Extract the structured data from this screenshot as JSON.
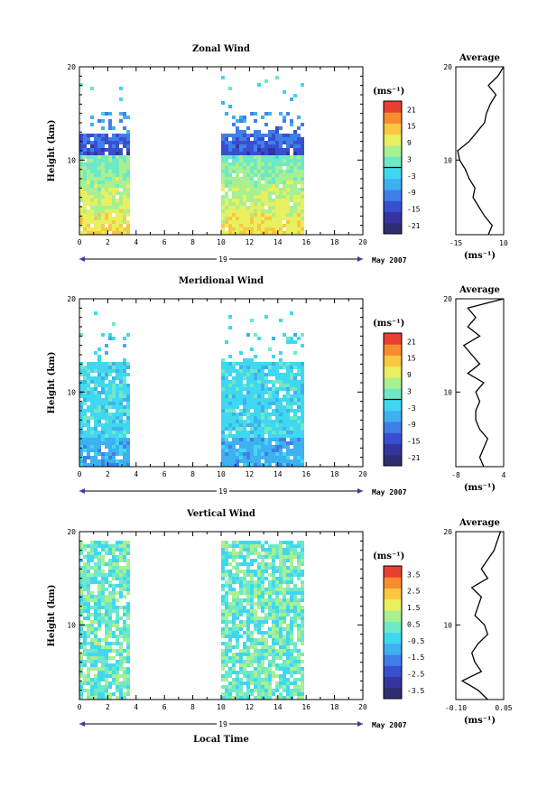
{
  "figure": {
    "date_label": "May 2007",
    "day_label": "19",
    "time_axis_label": "Local Time",
    "height_axis_label": "Height (km)",
    "unit_label": "(ms⁻¹)"
  },
  "chart_data": [
    {
      "type": "heatmap",
      "title": "Zonal Wind",
      "xlabel": "",
      "ylabel": "Height (km)",
      "xlim": [
        0,
        20
      ],
      "ylim": [
        2,
        20
      ],
      "x_ticks": [
        0,
        2,
        4,
        6,
        8,
        10,
        12,
        14,
        16,
        18,
        20
      ],
      "x_tick_labels": [
        "0",
        "2",
        "4",
        "6",
        "8",
        "10",
        "12",
        "14",
        "16",
        "18",
        "20"
      ],
      "y_ticks": [
        10,
        20
      ],
      "grid": false,
      "data_segments": [
        [
          0,
          3.5
        ],
        [
          10,
          15.7
        ]
      ],
      "colorbar": {
        "label": "(ms⁻¹)",
        "ticks": [
          "21",
          "15",
          "9",
          "3",
          "-3",
          "-9",
          "-15",
          "-21"
        ],
        "range": [
          -24,
          24
        ],
        "zero_line": 0
      },
      "profile_description": "strong westward (blue) above ~10 km, weak near-zero winds below 10 km",
      "average": {
        "title": "Average",
        "xlabel": "(ms⁻¹)",
        "xlim": [
          -15,
          10
        ],
        "x_ticks": [
          "-15",
          "10"
        ],
        "y_ticks": [
          10,
          20
        ],
        "heights": [
          2,
          3,
          4,
          5,
          6,
          7,
          8,
          9,
          10,
          11,
          12,
          13,
          14,
          15,
          16,
          17,
          18,
          19,
          20
        ],
        "values": [
          2,
          4,
          0,
          -3,
          -6,
          -5,
          -8,
          -10,
          -13,
          -14,
          -8,
          -4,
          0,
          1,
          3,
          6,
          2,
          7,
          10
        ]
      }
    },
    {
      "type": "heatmap",
      "title": "Meridional Wind",
      "xlabel": "",
      "ylabel": "Height (km)",
      "xlim": [
        0,
        20
      ],
      "ylim": [
        2,
        20
      ],
      "x_ticks": [
        0,
        2,
        4,
        6,
        8,
        10,
        12,
        14,
        16,
        18,
        20
      ],
      "x_tick_labels": [
        "0",
        "2",
        "4",
        "6",
        "8",
        "10",
        "12",
        "14",
        "16",
        "18",
        "20"
      ],
      "y_ticks": [
        10,
        20
      ],
      "grid": false,
      "data_segments": [
        [
          0,
          3.5
        ],
        [
          10,
          15.7
        ]
      ],
      "colorbar": {
        "label": "(ms⁻¹)",
        "ticks": [
          "21",
          "15",
          "9",
          "3",
          "-3",
          "-9",
          "-15",
          "-21"
        ],
        "range": [
          -24,
          24
        ],
        "zero_line": 0
      },
      "average": {
        "title": "Average",
        "xlabel": "(ms⁻¹)",
        "xlim": [
          -8,
          4
        ],
        "x_ticks": [
          "-8",
          "4"
        ],
        "y_ticks": [
          10,
          20
        ],
        "heights": [
          2,
          3,
          4,
          5,
          6,
          7,
          8,
          9,
          10,
          11,
          12,
          13,
          14,
          15,
          16,
          17,
          18,
          19,
          20
        ],
        "values": [
          -1,
          -2,
          -1,
          0,
          -2,
          -3,
          -3,
          -2,
          -3,
          -1,
          -5,
          -2,
          -4,
          -6,
          -2,
          -5,
          -3,
          -5,
          4
        ]
      }
    },
    {
      "type": "heatmap",
      "title": "Vertical Wind",
      "xlabel": "Local Time",
      "ylabel": "Height (km)",
      "xlim": [
        0,
        20
      ],
      "ylim": [
        2,
        20
      ],
      "x_ticks": [
        0,
        2,
        4,
        6,
        8,
        10,
        12,
        14,
        16,
        18,
        20
      ],
      "x_tick_labels": [
        "0",
        "2",
        "4",
        "6",
        "8",
        "10",
        "12",
        "14",
        "16",
        "18",
        "20"
      ],
      "y_ticks": [
        10,
        20
      ],
      "grid": false,
      "data_segments": [
        [
          0,
          3.5
        ],
        [
          10,
          15.7
        ]
      ],
      "colorbar": {
        "label": "(ms⁻¹)",
        "ticks": [
          "3.5",
          "2.5",
          "1.5",
          "0.5",
          "-0.5",
          "-1.5",
          "-2.5",
          "-3.5"
        ],
        "range": [
          -4,
          4
        ]
      },
      "average": {
        "title": "Average",
        "xlabel": "(ms⁻¹)",
        "xlim": [
          -0.1,
          0.05
        ],
        "x_ticks": [
          "-0.10",
          "0.05"
        ],
        "y_ticks": [
          10,
          20
        ],
        "heights": [
          2,
          3,
          4,
          5,
          6,
          7,
          8,
          9,
          10,
          11,
          12,
          13,
          14,
          15,
          16,
          17,
          18,
          19,
          20
        ],
        "values": [
          0.0,
          -0.03,
          -0.08,
          -0.02,
          -0.04,
          -0.05,
          -0.03,
          0.0,
          -0.01,
          -0.04,
          -0.03,
          -0.02,
          -0.05,
          0.0,
          -0.02,
          0.0,
          0.02,
          0.03,
          0.04
        ]
      }
    }
  ]
}
